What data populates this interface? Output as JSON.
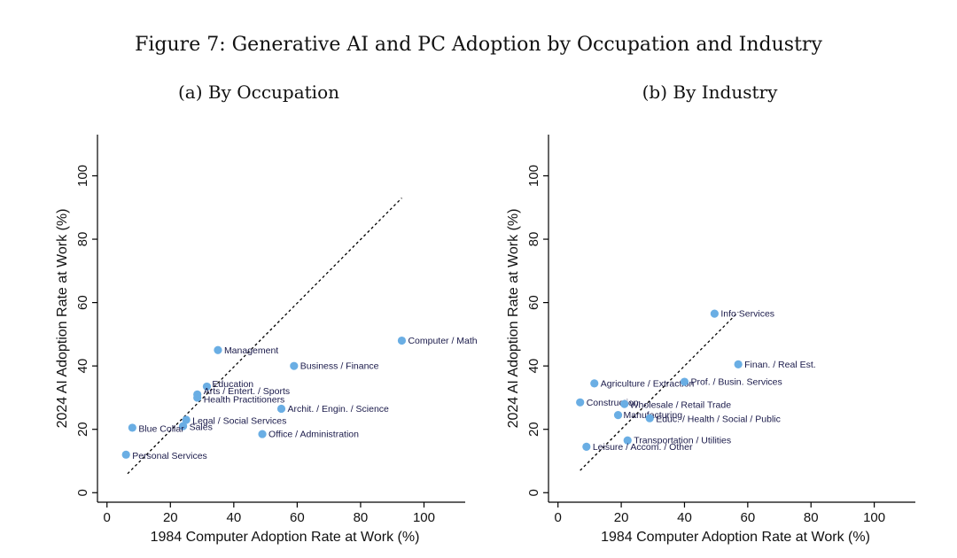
{
  "figure_title": "Figure 7: Generative AI and PC Adoption by Occupation and Industry",
  "chart_data": [
    {
      "type": "scatter",
      "title": "(a) By Occupation",
      "xlabel": "1984 Computer Adoption Rate at Work (%)",
      "ylabel": "2024 AI Adoption Rate at Work (%)",
      "xlim": [
        -3,
        113
      ],
      "ylim": [
        -3,
        113
      ],
      "xticks": [
        0,
        20,
        40,
        60,
        80,
        100
      ],
      "yticks": [
        0,
        20,
        40,
        60,
        80,
        100
      ],
      "fit_line": {
        "x": [
          6.5,
          93
        ],
        "y": [
          6,
          93
        ]
      },
      "points": [
        {
          "label": "Computer / Math",
          "x": 93,
          "y": 48
        },
        {
          "label": "Management",
          "x": 35,
          "y": 45
        },
        {
          "label": "Business / Finance",
          "x": 59,
          "y": 40
        },
        {
          "label": "Education",
          "x": 31.5,
          "y": 33.5
        },
        {
          "label": "Arts / Entert. / Sports",
          "x": 28.5,
          "y": 31
        },
        {
          "label": "Health Practitioners",
          "x": 28.5,
          "y": 30
        },
        {
          "label": "Archit. / Engin. / Science",
          "x": 55,
          "y": 26.5
        },
        {
          "label": "Legal / Social Services",
          "x": 25,
          "y": 23
        },
        {
          "label": "Sales",
          "x": 24,
          "y": 21
        },
        {
          "label": "Blue Collar",
          "x": 8,
          "y": 20.5
        },
        {
          "label": "Office / Administration",
          "x": 49,
          "y": 18.5
        },
        {
          "label": "Personal Services",
          "x": 6,
          "y": 12
        }
      ]
    },
    {
      "type": "scatter",
      "title": "(b) By Industry",
      "xlabel": "1984 Computer Adoption Rate at Work (%)",
      "ylabel": "2024 AI Adoption Rate at Work (%)",
      "xlim": [
        -3,
        113
      ],
      "ylim": [
        -3,
        113
      ],
      "xticks": [
        0,
        20,
        40,
        60,
        80,
        100
      ],
      "yticks": [
        0,
        20,
        40,
        60,
        80,
        100
      ],
      "fit_line": {
        "x": [
          7,
          57
        ],
        "y": [
          7,
          57
        ]
      },
      "points": [
        {
          "label": "Info Services",
          "x": 49.5,
          "y": 56.5
        },
        {
          "label": "Finan. / Real Est.",
          "x": 57,
          "y": 40.5
        },
        {
          "label": "Agriculture / Extraction",
          "x": 11.5,
          "y": 34.5
        },
        {
          "label": "Prof. / Busin. Services",
          "x": 40,
          "y": 35
        },
        {
          "label": "Construction",
          "x": 7,
          "y": 28.5
        },
        {
          "label": "Wholesale / Retail Trade",
          "x": 21,
          "y": 28
        },
        {
          "label": "Manufacturing",
          "x": 19,
          "y": 24.5
        },
        {
          "label": "Educ. / Health / Social / Public",
          "x": 29,
          "y": 23.5
        },
        {
          "label": "Transportation / Utilities",
          "x": 22,
          "y": 16.5
        },
        {
          "label": "Leisure / Accom. / Other",
          "x": 9,
          "y": 14.5
        }
      ]
    }
  ]
}
